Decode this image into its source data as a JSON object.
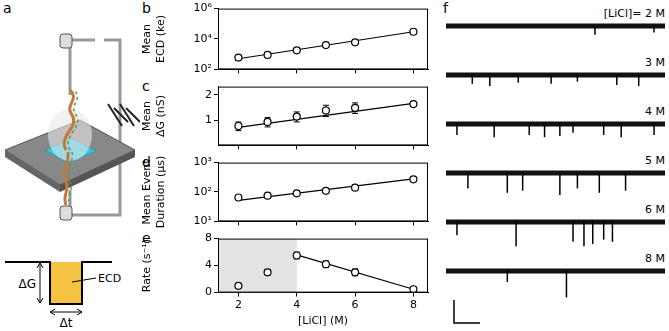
{
  "schematic": {
    "panel": "a",
    "labels": {
      "conductance": "ΔG",
      "duration": "Δt",
      "charge": "ECD"
    }
  },
  "traces": {
    "panel": "f",
    "rows": [
      {
        "label": "[LiCl]= 2 M",
        "events": [
          [
            0.68,
            0.4
          ],
          [
            0.95,
            0.3
          ]
        ]
      },
      {
        "label": "3 M",
        "events": [
          [
            0.12,
            0.4
          ],
          [
            0.2,
            0.5
          ],
          [
            0.33,
            0.35
          ],
          [
            0.48,
            0.4
          ],
          [
            0.6,
            0.3
          ],
          [
            0.78,
            0.45
          ],
          [
            0.88,
            0.5
          ]
        ]
      },
      {
        "label": "4 M",
        "events": [
          [
            0.05,
            0.5
          ],
          [
            0.22,
            0.6
          ],
          [
            0.38,
            0.5
          ],
          [
            0.45,
            0.6
          ],
          [
            0.52,
            0.55
          ],
          [
            0.58,
            0.4
          ],
          [
            0.72,
            0.5
          ],
          [
            0.8,
            0.6
          ],
          [
            0.95,
            0.5
          ]
        ]
      },
      {
        "label": "5 M",
        "events": [
          [
            0.1,
            0.7
          ],
          [
            0.28,
            0.9
          ],
          [
            0.35,
            0.8
          ],
          [
            0.52,
            1.0
          ],
          [
            0.6,
            0.7
          ],
          [
            0.7,
            0.9
          ],
          [
            0.82,
            0.8
          ]
        ]
      },
      {
        "label": "6 M",
        "events": [
          [
            0.05,
            0.6
          ],
          [
            0.32,
            1.1
          ],
          [
            0.58,
            0.9
          ],
          [
            0.63,
            1.1
          ],
          [
            0.67,
            1.0
          ],
          [
            0.72,
            0.8
          ],
          [
            0.76,
            0.9
          ]
        ]
      },
      {
        "label": "8 M",
        "events": [
          [
            0.28,
            0.5
          ],
          [
            0.55,
            1.2
          ]
        ]
      }
    ]
  },
  "chart_data": [
    {
      "type": "scatter",
      "panel": "b",
      "ylabel": [
        "Mean",
        "ECD (ke)"
      ],
      "log": "y",
      "grid": false,
      "tick_labels": "y",
      "xlim": [
        1.3,
        8.5
      ],
      "xticks": [
        2,
        4,
        6,
        8
      ],
      "ylim": [
        100,
        1000000
      ],
      "yticks": [
        {
          "value": 100,
          "label": "10²"
        },
        {
          "value": 10000,
          "label": "10⁴"
        },
        {
          "value": 1000000,
          "label": "10⁶"
        }
      ],
      "series": [
        {
          "type": "scatter",
          "marker": "open_circle",
          "color": "#000000",
          "x": [
            2,
            3,
            4,
            5,
            6,
            8
          ],
          "values": [
            600,
            900,
            1800,
            4000,
            6000,
            30000
          ],
          "errors": [
            200,
            300,
            500,
            1000,
            1500,
            6000
          ]
        },
        {
          "type": "line",
          "line_style": "solid",
          "color": "#000000",
          "x": [
            2,
            8
          ],
          "values": [
            500,
            30000
          ]
        }
      ]
    },
    {
      "type": "scatter",
      "panel": "c",
      "ylabel": [
        "Mean",
        "ΔG (nS)"
      ],
      "log": "y",
      "grid": false,
      "tick_labels": "y",
      "xlim": [
        1.3,
        8.5
      ],
      "xticks": [
        2,
        4,
        6,
        8
      ],
      "ylim": [
        0.5,
        2.5
      ],
      "yticks": [
        1,
        2
      ],
      "series": [
        {
          "type": "scatter",
          "marker": "open_circle",
          "color": "#000000",
          "x": [
            2,
            3,
            4,
            5,
            6,
            8
          ],
          "values": [
            0.85,
            0.95,
            1.1,
            1.3,
            1.4,
            1.55
          ],
          "errors": [
            0.1,
            0.12,
            0.15,
            0.2,
            0.2,
            0.08
          ]
        },
        {
          "type": "line",
          "line_style": "solid",
          "color": "#000000",
          "x": [
            2,
            8
          ],
          "values": [
            0.82,
            1.58
          ]
        }
      ]
    },
    {
      "type": "scatter",
      "panel": "d",
      "ylabel": [
        "Mean Event",
        "Duration (μs)"
      ],
      "log": "y",
      "grid": false,
      "tick_labels": "y",
      "xlim": [
        1.3,
        8.5
      ],
      "xticks": [
        2,
        4,
        6,
        8
      ],
      "ylim": [
        10,
        1000
      ],
      "yticks": [
        {
          "value": 10,
          "label": "10¹"
        },
        {
          "value": 100,
          "label": "10²"
        },
        {
          "value": 1000,
          "label": "10³"
        }
      ],
      "series": [
        {
          "type": "scatter",
          "marker": "open_circle",
          "color": "#000000",
          "x": [
            2,
            3,
            4,
            5,
            6,
            8
          ],
          "values": [
            65,
            75,
            90,
            110,
            140,
            270
          ],
          "errors": [
            10,
            10,
            10,
            12,
            15,
            40
          ]
        },
        {
          "type": "line",
          "line_style": "solid",
          "color": "#000000",
          "x": [
            2,
            8
          ],
          "values": [
            52,
            280
          ]
        }
      ]
    },
    {
      "type": "scatter",
      "panel": "e",
      "ylabel": "Rate (s⁻¹)",
      "xlabel": "[LiCl] (M)",
      "grid": false,
      "xlim": [
        1.3,
        8.5
      ],
      "xticks": [
        2,
        4,
        6,
        8
      ],
      "ylim": [
        0,
        8
      ],
      "yticks": [
        0,
        4,
        8
      ],
      "shaded_x": [
        1.3,
        4
      ],
      "series": [
        {
          "type": "scatter",
          "marker": "open_circle",
          "color": "#000000",
          "x": [
            2,
            3,
            4,
            5,
            6,
            8
          ],
          "values": [
            1,
            3,
            5.5,
            4.2,
            3,
            0.5
          ],
          "errors": [
            0.3,
            0.4,
            0.5,
            0.5,
            0.5,
            0.3
          ]
        },
        {
          "type": "line",
          "line_style": "solid",
          "color": "#000000",
          "x": [
            4,
            8
          ],
          "values": [
            5.6,
            0.5
          ]
        }
      ]
    }
  ]
}
